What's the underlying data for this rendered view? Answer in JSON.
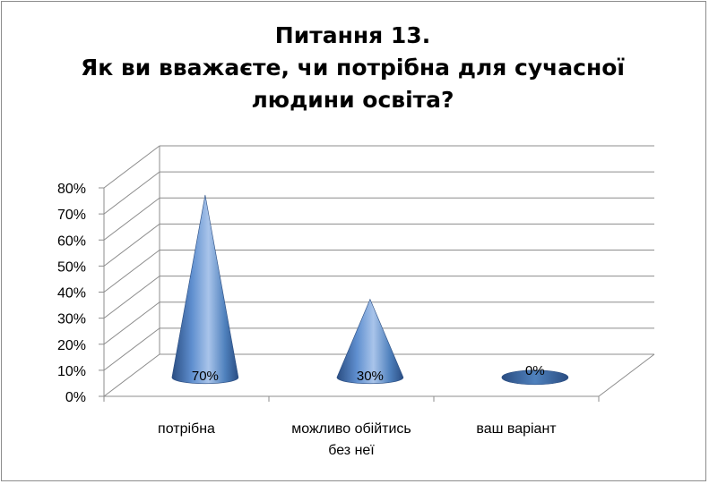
{
  "chart_data": {
    "type": "bar",
    "style": "3d-cone",
    "title_lines": [
      "Питання 13.",
      "Як ви вважаєте, чи потрібна для сучасної",
      "людини освіта?"
    ],
    "categories": [
      {
        "lines": [
          "потрібна"
        ]
      },
      {
        "lines": [
          "можливо обійтись",
          "без неї"
        ]
      },
      {
        "lines": [
          "ваш варіант"
        ]
      }
    ],
    "values": [
      70,
      30,
      0
    ],
    "data_labels": [
      "70%",
      "30%",
      "0%"
    ],
    "ylim": [
      0,
      80
    ],
    "yticks": [
      "0%",
      "10%",
      "20%",
      "30%",
      "40%",
      "50%",
      "60%",
      "70%",
      "80%"
    ],
    "grid": true,
    "legend": "none",
    "colors": {
      "cone_dark": "#2a4d82",
      "cone_mid": "#4f81bd",
      "cone_light": "#a9c4ea",
      "grid": "#8c8c8c"
    }
  }
}
